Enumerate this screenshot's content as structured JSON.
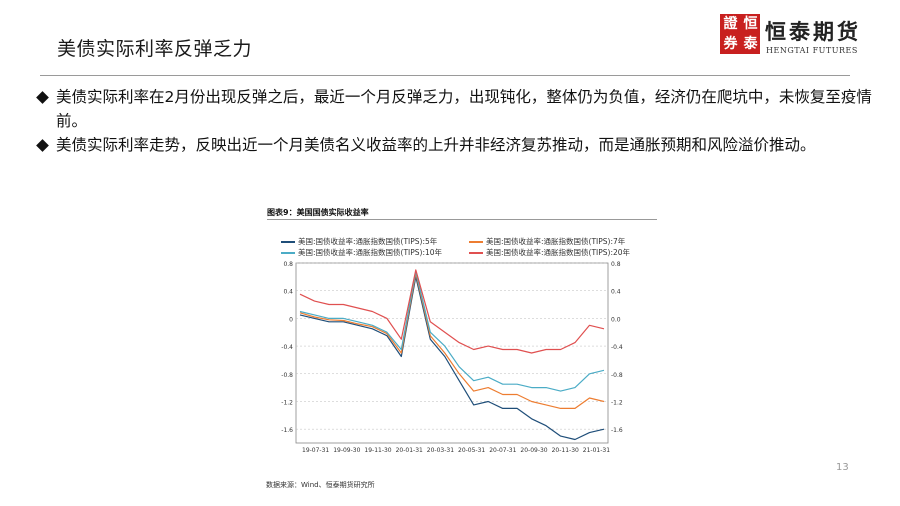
{
  "slide": {
    "title": "美债实际利率反弹乏力",
    "page_number": "13",
    "bullets": [
      "美债实际利率在2月份出现反弹之后，最近一个月反弹乏力，出现钝化，整体仍为负值，经济仍在爬坑中，未恢复至疫情前。",
      "美债实际利率走势，反映出近一个月美债名义收益率的上升并非经济复苏推动，而是通胀预期和风险溢价推动。"
    ]
  },
  "logo": {
    "seal_chars": [
      "證",
      "恒",
      "券",
      "泰"
    ],
    "brand_cn": "恒泰期货",
    "brand_en": "HENGTAI FUTURES"
  },
  "figure": {
    "caption": "图表9：美国国债实际收益率",
    "source": "数据来源：Wind、恒泰期货研究所"
  },
  "chart_data": {
    "type": "line",
    "x_ticks": [
      "19-07-31",
      "19-09-30",
      "19-11-30",
      "20-01-31",
      "20-03-31",
      "20-05-31",
      "20-07-31",
      "20-09-30",
      "20-11-30",
      "21-01-31"
    ],
    "left_axis": {
      "ylim": [
        -1.8,
        0.8
      ],
      "ticks": [
        "0.8",
        "0.4",
        "0",
        "-0.4",
        "-0.8",
        "-1.2",
        "-1.6"
      ],
      "tick_values": [
        0.8,
        0.4,
        0,
        -0.4,
        -0.8,
        -1.2,
        -1.6
      ]
    },
    "right_axis": {
      "ylim": [
        -1.8,
        0.8
      ],
      "ticks": [
        "0.8",
        "0.4",
        "0.0",
        "-0.4",
        "-0.8",
        "-1.2",
        "-1.6"
      ],
      "tick_values": [
        0.8,
        0.4,
        0.0,
        -0.4,
        -0.8,
        -1.2,
        -1.6
      ]
    },
    "series": [
      {
        "name": "美国:国债收益率:通胀指数国债(TIPS):5年",
        "color": "#1f4e79",
        "values": [
          0.05,
          0.0,
          -0.05,
          -0.05,
          -0.1,
          -0.15,
          -0.25,
          -0.55,
          0.6,
          -0.3,
          -0.55,
          -0.9,
          -1.25,
          -1.2,
          -1.3,
          -1.3,
          -1.45,
          -1.55,
          -1.7,
          -1.75,
          -1.65,
          -1.6
        ]
      },
      {
        "name": "美国:国债收益率:通胀指数国债(TIPS):7年",
        "color": "#ed7d31",
        "values": [
          0.08,
          0.02,
          -0.02,
          -0.03,
          -0.08,
          -0.12,
          -0.22,
          -0.5,
          0.65,
          -0.25,
          -0.5,
          -0.8,
          -1.05,
          -1.0,
          -1.1,
          -1.1,
          -1.2,
          -1.25,
          -1.3,
          -1.3,
          -1.15,
          -1.2
        ]
      },
      {
        "name": "美国:国债收益率:通胀指数国债(TIPS):10年",
        "color": "#4bacc6",
        "values": [
          0.1,
          0.05,
          0.0,
          0.0,
          -0.05,
          -0.1,
          -0.2,
          -0.45,
          0.68,
          -0.2,
          -0.4,
          -0.7,
          -0.9,
          -0.85,
          -0.95,
          -0.95,
          -1.0,
          -1.0,
          -1.05,
          -1.0,
          -0.8,
          -0.75
        ]
      },
      {
        "name": "美国:国债收益率:通胀指数国债(TIPS):20年",
        "color": "#e05050",
        "values": [
          0.35,
          0.25,
          0.2,
          0.2,
          0.15,
          0.1,
          0.0,
          -0.3,
          0.7,
          -0.05,
          -0.2,
          -0.35,
          -0.45,
          -0.4,
          -0.45,
          -0.45,
          -0.5,
          -0.45,
          -0.45,
          -0.35,
          -0.1,
          -0.15
        ]
      }
    ]
  }
}
